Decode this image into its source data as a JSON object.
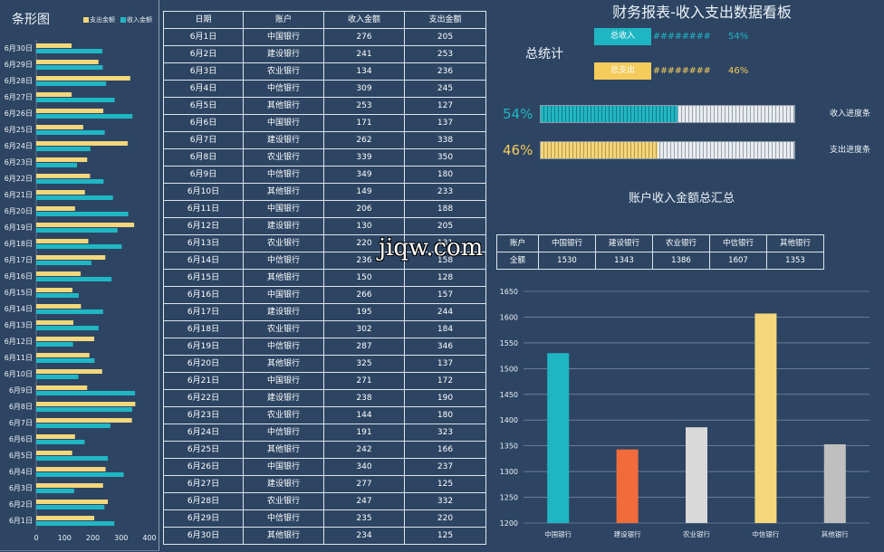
{
  "dashboard": {
    "title": "财务报表-收入支出数据看板",
    "stats_label": "总统计",
    "income": {
      "label": "总收入",
      "value": "########",
      "percent": "54%"
    },
    "expense": {
      "label": "总支出",
      "value": "########",
      "percent": "46%"
    },
    "progress": {
      "income": {
        "percent": "54%",
        "label": "收入进度条",
        "ratio": 0.54
      },
      "expense": {
        "percent": "46%",
        "label": "支出进度条",
        "ratio": 0.46
      }
    }
  },
  "colors": {
    "background": "#2d4563",
    "income": "#1fb6c3",
    "expense": "#f5cb5c",
    "border": "#dde4ec"
  },
  "table": {
    "columns": [
      "日期",
      "账户",
      "收入金额",
      "支出金额"
    ],
    "rows": [
      [
        "6月1日",
        "中国银行",
        276,
        205
      ],
      [
        "6月2日",
        "建设银行",
        241,
        253
      ],
      [
        "6月3日",
        "农业银行",
        134,
        236
      ],
      [
        "6月4日",
        "中信银行",
        309,
        245
      ],
      [
        "6月5日",
        "其他银行",
        253,
        127
      ],
      [
        "6月6日",
        "中国银行",
        171,
        137
      ],
      [
        "6月7日",
        "建设银行",
        262,
        338
      ],
      [
        "6月8日",
        "农业银行",
        339,
        350
      ],
      [
        "6月9日",
        "中信银行",
        349,
        180
      ],
      [
        "6月10日",
        "其他银行",
        149,
        233
      ],
      [
        "6月11日",
        "中国银行",
        206,
        188
      ],
      [
        "6月12日",
        "建设银行",
        130,
        205
      ],
      [
        "6月13日",
        "农业银行",
        220,
        131
      ],
      [
        "6月14日",
        "中信银行",
        236,
        158
      ],
      [
        "6月15日",
        "其他银行",
        150,
        128
      ],
      [
        "6月16日",
        "中国银行",
        266,
        157
      ],
      [
        "6月17日",
        "建设银行",
        195,
        244
      ],
      [
        "6月18日",
        "农业银行",
        302,
        184
      ],
      [
        "6月19日",
        "中信银行",
        287,
        346
      ],
      [
        "6月20日",
        "其他银行",
        325,
        137
      ],
      [
        "6月21日",
        "中国银行",
        271,
        172
      ],
      [
        "6月22日",
        "建设银行",
        238,
        190
      ],
      [
        "6月23日",
        "农业银行",
        144,
        180
      ],
      [
        "6月24日",
        "中信银行",
        191,
        323
      ],
      [
        "6月25日",
        "其他银行",
        242,
        166
      ],
      [
        "6月26日",
        "中国银行",
        340,
        237
      ],
      [
        "6月27日",
        "建设银行",
        277,
        125
      ],
      [
        "6月28日",
        "农业银行",
        247,
        332
      ],
      [
        "6月29日",
        "中信银行",
        235,
        220
      ],
      [
        "6月30日",
        "其他银行",
        234,
        125
      ]
    ]
  },
  "summary": {
    "title": "账户收入金额总汇总",
    "header_label": "账户",
    "row_label": "全额",
    "accounts": [
      "中国银行",
      "建设银行",
      "农业银行",
      "中信银行",
      "其他银行"
    ],
    "values": [
      1530,
      1343,
      1386,
      1607,
      1353
    ]
  },
  "watermark": "jiqw.com",
  "chart_data": [
    {
      "type": "bar",
      "orientation": "horizontal",
      "title": "条形图",
      "categories": [
        "6月1日",
        "6月2日",
        "6月3日",
        "6月4日",
        "6月5日",
        "6月6日",
        "6月7日",
        "6月8日",
        "6月9日",
        "6月10日",
        "6月11日",
        "6月12日",
        "6月13日",
        "6月14日",
        "6月15日",
        "6月16日",
        "6月17日",
        "6月18日",
        "6月19日",
        "6月20日",
        "6月21日",
        "6月22日",
        "6月23日",
        "6月24日",
        "6月25日",
        "6月26日",
        "6月27日",
        "6月28日",
        "6月29日",
        "6月30日"
      ],
      "series": [
        {
          "name": "支出金额",
          "color": "#f4d77b",
          "values": [
            205,
            253,
            236,
            245,
            127,
            137,
            338,
            350,
            180,
            233,
            188,
            205,
            131,
            158,
            128,
            157,
            244,
            184,
            346,
            137,
            172,
            190,
            180,
            323,
            166,
            237,
            125,
            332,
            220,
            125
          ]
        },
        {
          "name": "收入金额",
          "color": "#20b7c5",
          "values": [
            276,
            241,
            134,
            309,
            253,
            171,
            262,
            339,
            349,
            149,
            206,
            130,
            220,
            236,
            150,
            266,
            195,
            302,
            287,
            325,
            271,
            238,
            144,
            191,
            242,
            340,
            277,
            247,
            235,
            234
          ]
        }
      ],
      "xlim": [
        0,
        400
      ],
      "xticks": [
        0,
        100,
        200,
        300,
        400
      ],
      "legend": "top-right",
      "grid": false
    },
    {
      "type": "bar",
      "orientation": "vertical",
      "categories": [
        "中国银行",
        "建设银行",
        "农业银行",
        "中信银行",
        "其他银行"
      ],
      "values": [
        1530,
        1343,
        1386,
        1607,
        1353
      ],
      "colors": [
        "#1fb6c4",
        "#f26b3a",
        "#d9d9d9",
        "#f3d77a",
        "#bfbfbf"
      ],
      "ylim": [
        1200,
        1650
      ],
      "yticks": [
        1200,
        1250,
        1300,
        1350,
        1400,
        1450,
        1500,
        1550,
        1600,
        1650
      ],
      "grid": true
    }
  ]
}
